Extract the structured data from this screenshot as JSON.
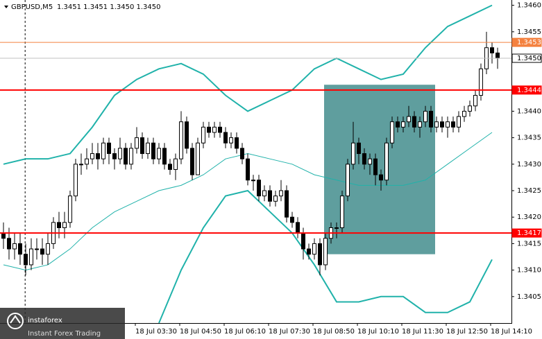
{
  "chart_data": {
    "type": "candlestick",
    "title": "GBPUSD,M5",
    "quote": "1.3451 1.3451 1.3450 1.3450",
    "xlim": [
      -0.625,
      91.5
    ],
    "ylim": [
      1.34,
      1.3461
    ],
    "yticks": [
      {
        "value": 1.346,
        "label": "1.3460"
      },
      1.3455,
      {
        "value": 1.344,
        "label": "1.3440"
      },
      1.3435,
      {
        "value": 1.343,
        "label": "1.3430"
      },
      1.3425,
      {
        "value": 1.342,
        "label": "1.3420"
      },
      1.3415,
      {
        "value": 1.341,
        "label": "1.3410"
      },
      1.3405
    ],
    "xticks": [
      {
        "value": 23.75,
        "label": "18 Jul 03:30"
      },
      {
        "value": 31.75,
        "label": "18 Jul 04:50"
      },
      {
        "value": 39.75,
        "label": "18 Jul 06:10"
      },
      {
        "value": 47.75,
        "label": "18 Jul 07:30"
      },
      {
        "value": 55.75,
        "label": "18 Jul 08:50"
      },
      {
        "value": 63.75,
        "label": "18 Jul 10:10"
      },
      {
        "value": 71.75,
        "label": "18 Jul 11:30"
      },
      {
        "value": 79.75,
        "label": "18 Jul 12:50"
      },
      {
        "value": 87.75,
        "label": "18 Jul 14:10"
      }
    ],
    "candles": {
      "open": [
        1.3417,
        1.3416,
        1.3414,
        1.3415,
        1.3413,
        1.3411,
        1.3414,
        1.3414,
        1.3413,
        1.3415,
        1.3419,
        1.3418,
        1.3419,
        1.3424,
        1.343,
        1.343,
        1.3431,
        1.3432,
        1.3431,
        1.3434,
        1.3432,
        1.3431,
        1.3433,
        1.343,
        1.3433,
        1.3435,
        1.3432,
        1.3434,
        1.3431,
        1.3433,
        1.343,
        1.3429,
        1.3431,
        1.3438,
        1.3433,
        1.3428,
        1.3434,
        1.3437,
        1.3436,
        1.3437,
        1.3436,
        1.3434,
        1.3435,
        1.3433,
        1.3431,
        1.3427,
        1.3427,
        1.3424,
        1.3425,
        1.3423,
        1.3424,
        1.3425,
        1.342,
        1.3419,
        1.3417,
        1.3414,
        1.3413,
        1.3415,
        1.3411,
        1.3416,
        1.3418,
        1.3418,
        1.3424,
        1.343,
        1.3434,
        1.3432,
        1.343,
        1.3431,
        1.3428,
        1.3427,
        1.3434,
        1.3438,
        1.3437,
        1.3438,
        1.3439,
        1.3437,
        1.3438,
        1.344,
        1.3437,
        1.3438,
        1.3437,
        1.3438,
        1.3437,
        1.3439,
        1.344,
        1.3441,
        1.3443,
        1.3448,
        1.3452,
        1.3451
      ],
      "high": [
        1.3419,
        1.3418,
        1.3417,
        1.3417,
        1.3415,
        1.3416,
        1.3416,
        1.3416,
        1.3417,
        1.342,
        1.3421,
        1.3421,
        1.3425,
        1.3431,
        1.3432,
        1.3433,
        1.3434,
        1.3434,
        1.3435,
        1.3435,
        1.3433,
        1.3435,
        1.3434,
        1.3434,
        1.3437,
        1.3436,
        1.3435,
        1.3435,
        1.3434,
        1.3434,
        1.3431,
        1.3432,
        1.344,
        1.3439,
        1.3434,
        1.3435,
        1.3438,
        1.3438,
        1.3438,
        1.3438,
        1.3437,
        1.3436,
        1.3436,
        1.3434,
        1.3432,
        1.3428,
        1.3428,
        1.3426,
        1.3426,
        1.3425,
        1.3427,
        1.3426,
        1.3421,
        1.342,
        1.3418,
        1.3415,
        1.3416,
        1.3416,
        1.3417,
        1.3419,
        1.3419,
        1.3425,
        1.3431,
        1.3438,
        1.3435,
        1.3433,
        1.3432,
        1.3432,
        1.3429,
        1.3435,
        1.3439,
        1.3439,
        1.3439,
        1.3441,
        1.344,
        1.3439,
        1.3441,
        1.3441,
        1.3439,
        1.3439,
        1.3439,
        1.3439,
        1.344,
        1.3441,
        1.3442,
        1.3444,
        1.3449,
        1.3455,
        1.3453,
        1.3452
      ],
      "low": [
        1.3414,
        1.3412,
        1.3412,
        1.3411,
        1.3409,
        1.341,
        1.3412,
        1.3411,
        1.3411,
        1.3414,
        1.3416,
        1.3416,
        1.3418,
        1.3423,
        1.3428,
        1.3429,
        1.343,
        1.3429,
        1.343,
        1.343,
        1.3429,
        1.343,
        1.3429,
        1.3429,
        1.3432,
        1.3431,
        1.3431,
        1.343,
        1.343,
        1.3429,
        1.3428,
        1.3427,
        1.343,
        1.3432,
        1.3427,
        1.3428,
        1.3433,
        1.3435,
        1.3435,
        1.3435,
        1.3433,
        1.3433,
        1.3432,
        1.343,
        1.3426,
        1.3425,
        1.3423,
        1.3423,
        1.3422,
        1.3422,
        1.3423,
        1.3419,
        1.3418,
        1.3416,
        1.3412,
        1.3412,
        1.3412,
        1.3409,
        1.341,
        1.3415,
        1.3416,
        1.3417,
        1.3423,
        1.3429,
        1.343,
        1.3429,
        1.3428,
        1.3426,
        1.3425,
        1.3426,
        1.3433,
        1.3436,
        1.3436,
        1.3437,
        1.3436,
        1.3435,
        1.3437,
        1.3436,
        1.3436,
        1.3436,
        1.3435,
        1.3436,
        1.3436,
        1.3438,
        1.3439,
        1.344,
        1.3442,
        1.3447,
        1.3449,
        1.3448
      ],
      "close": [
        1.3416,
        1.3414,
        1.3415,
        1.3413,
        1.3411,
        1.3414,
        1.3414,
        1.3413,
        1.3415,
        1.3419,
        1.3418,
        1.3419,
        1.3424,
        1.343,
        1.343,
        1.3431,
        1.3432,
        1.3431,
        1.3434,
        1.3432,
        1.3431,
        1.3433,
        1.343,
        1.3433,
        1.3435,
        1.3432,
        1.3434,
        1.3431,
        1.3433,
        1.343,
        1.3429,
        1.3431,
        1.3438,
        1.3433,
        1.3428,
        1.3434,
        1.3437,
        1.3436,
        1.3437,
        1.3436,
        1.3434,
        1.3435,
        1.3433,
        1.3431,
        1.3427,
        1.3427,
        1.3424,
        1.3425,
        1.3423,
        1.3424,
        1.3425,
        1.342,
        1.3419,
        1.3417,
        1.3414,
        1.3413,
        1.3415,
        1.3411,
        1.3416,
        1.3418,
        1.3418,
        1.3424,
        1.343,
        1.3434,
        1.3432,
        1.343,
        1.3431,
        1.3428,
        1.3427,
        1.3434,
        1.3438,
        1.3437,
        1.3438,
        1.3439,
        1.3437,
        1.3438,
        1.344,
        1.3437,
        1.3438,
        1.3437,
        1.3438,
        1.3437,
        1.3439,
        1.344,
        1.3441,
        1.3443,
        1.3448,
        1.3452,
        1.3451,
        1.345
      ]
    },
    "bands": {
      "color": "#20b2aa",
      "x": [
        0,
        4,
        8,
        12,
        16,
        20,
        24,
        28,
        32,
        36,
        40,
        44,
        48,
        52,
        56,
        60,
        64,
        68,
        72,
        76,
        80,
        84,
        88
      ],
      "upper": [
        1.343,
        1.3431,
        1.3431,
        1.3432,
        1.3437,
        1.3443,
        1.3446,
        1.3448,
        1.3449,
        1.3447,
        1.3443,
        1.344,
        1.3442,
        1.3444,
        1.3448,
        1.345,
        1.3448,
        1.3446,
        1.3447,
        1.3452,
        1.3456,
        1.3458,
        1.346
      ],
      "middle": [
        1.3411,
        1.341,
        1.3411,
        1.3414,
        1.3418,
        1.3421,
        1.3423,
        1.3425,
        1.3426,
        1.3428,
        1.3431,
        1.3432,
        1.3431,
        1.343,
        1.3428,
        1.3427,
        1.3426,
        1.3426,
        1.3426,
        1.3427,
        1.343,
        1.3433,
        1.3436
      ],
      "lower": [
        null,
        null,
        null,
        null,
        null,
        null,
        null,
        1.34,
        1.341,
        1.3418,
        1.3424,
        1.3425,
        1.3421,
        1.3417,
        1.3411,
        1.3404,
        1.3404,
        1.3405,
        1.3405,
        1.3402,
        1.3402,
        1.3404,
        1.3412
      ]
    },
    "zone": {
      "x": [
        57.75,
        77.75
      ],
      "y": [
        1.3413,
        1.3445
      ],
      "color": "#5f9e9e"
    },
    "day_separator": 3.9,
    "levels": [
      {
        "value": 1.3444,
        "color": "#ff0000"
      },
      {
        "value": 1.3417,
        "color": "#ff0000"
      },
      {
        "value": 1.3453,
        "color": "#f4813f"
      },
      {
        "value": 1.345,
        "label": "1.3450",
        "color": "#c0c0c0"
      }
    ],
    "watermark": {
      "brand": "instaforex",
      "slogan": "Instant Forex Trading"
    }
  }
}
